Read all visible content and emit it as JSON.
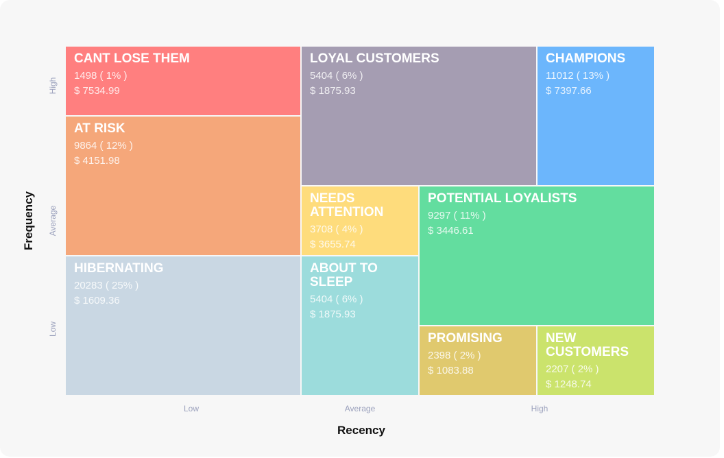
{
  "y_axis": {
    "title": "Frequency",
    "labels": [
      "High",
      "Average",
      "Low"
    ]
  },
  "x_axis": {
    "title": "Recency",
    "labels": [
      "Low",
      "Average",
      "High"
    ]
  },
  "segments": [
    {
      "name": "CANT LOSE THEM",
      "count": "1498 ( 1% )",
      "amount": "$ 7534.99"
    },
    {
      "name": "AT RISK",
      "count": "9864 ( 12% )",
      "amount": "$ 4151.98"
    },
    {
      "name": "HIBERNATING",
      "count": "20283 ( 25% )",
      "amount": "$ 1609.36"
    },
    {
      "name": "LOYAL CUSTOMERS",
      "count": "5404 ( 6% )",
      "amount": "$ 1875.93"
    },
    {
      "name": "CHAMPIONS",
      "count": "11012 ( 13% )",
      "amount": "$ 7397.66"
    },
    {
      "name": "NEEDS ATTENTION",
      "count": "3708 ( 4% )",
      "amount": "$ 3655.74"
    },
    {
      "name": "ABOUT TO SLEEP",
      "count": "5404 ( 6% )",
      "amount": "$ 1875.93"
    },
    {
      "name": "POTENTIAL LOYALISTS",
      "count": "9297 ( 11% )",
      "amount": "$ 3446.61"
    },
    {
      "name": "PROMISING",
      "count": "2398 ( 2% )",
      "amount": "$ 1083.88"
    },
    {
      "name": "NEW CUSTOMERS",
      "count": "2207 ( 2% )",
      "amount": "$ 1248.74"
    }
  ]
}
